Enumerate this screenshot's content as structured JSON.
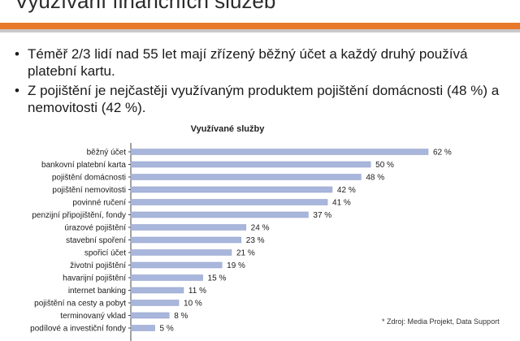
{
  "header": {
    "title": "Využívání finančních služeb",
    "accent_color": "#e8792b",
    "rule_color": "#c9c9c9"
  },
  "bullets": [
    "Téměř 2/3 lidí nad 55 let mají zřízený běžný účet a každý druhý používá platební kartu.",
    "Z pojištění je nejčastěji využívaným produktem pojištění domácnosti (48 %) a nemovitosti (42 %)."
  ],
  "chart_data": {
    "type": "bar",
    "orientation": "horizontal",
    "title": "Využívané služby",
    "categories": [
      "běžný účet",
      "bankovní platební karta",
      "pojištění domácnosti",
      "pojištění nemovitosti",
      "povinné ručení",
      "penzijní připojištění, fondy",
      "úrazové pojištění",
      "stavební spoření",
      "spořicí účet",
      "životní pojištění",
      "havarijní pojištění",
      "internet banking",
      "pojištění na cesty a pobyt",
      "terminovaný vklad",
      "podílové a investiční fondy"
    ],
    "values": [
      62,
      50,
      48,
      42,
      41,
      37,
      24,
      23,
      21,
      19,
      15,
      11,
      10,
      8,
      5
    ],
    "value_labels": [
      "62 %",
      "50 %",
      "48 %",
      "42 %",
      "41 %",
      "37 %",
      "24 %",
      "23 %",
      "21 %",
      "19 %",
      "15 %",
      "11 %",
      "10 %",
      "8 %",
      "5 %"
    ],
    "xlim": [
      0,
      62
    ],
    "bar_color": "#a9b6dc",
    "bar_stroke": "#8e9cc8",
    "grid": false,
    "legend": "none"
  },
  "source": "* Zdroj: Media Projekt, Data Support"
}
